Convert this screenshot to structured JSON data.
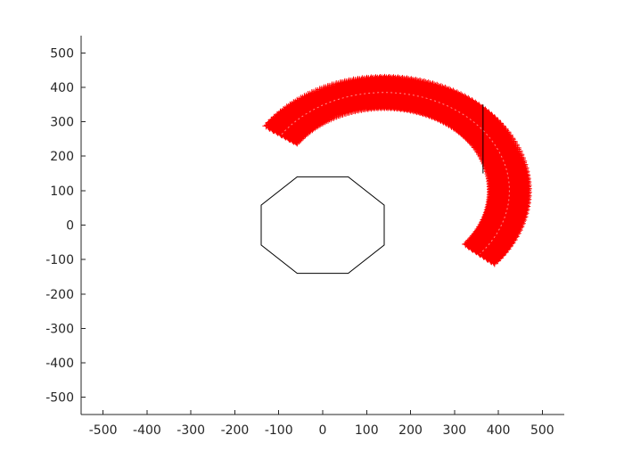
{
  "chart_data": {
    "type": "scatter",
    "title": "",
    "xlabel": "",
    "ylabel": "",
    "xlim": [
      -550,
      550
    ],
    "ylim": [
      -550,
      550
    ],
    "grid": false,
    "legend": "none",
    "x_ticks": [
      -500,
      -400,
      -300,
      -200,
      -100,
      0,
      100,
      200,
      300,
      400,
      500
    ],
    "y_ticks": [
      500,
      400,
      300,
      200,
      100,
      0,
      -100,
      -200,
      -300,
      -400,
      -500
    ],
    "x_tick_labels": [
      "-500",
      "-400",
      "-300",
      "-200",
      "-100",
      "0",
      "100",
      "200",
      "300",
      "400",
      "500"
    ],
    "y_tick_labels": [
      "500",
      "400",
      "300",
      "200",
      "100",
      "0",
      "-100",
      "-200",
      "-300",
      "-400",
      "-500"
    ],
    "octagon": {
      "color": "#000000",
      "vertices": [
        [
          -58,
          140
        ],
        [
          58,
          140
        ],
        [
          140,
          58
        ],
        [
          140,
          -58
        ],
        [
          58,
          -140
        ],
        [
          -58,
          -140
        ],
        [
          -140,
          -58
        ],
        [
          -140,
          58
        ]
      ]
    },
    "arc_band": {
      "color": "#ff0000",
      "marker": "plus",
      "center": [
        140,
        100
      ],
      "inner_radius": 245,
      "outer_radius": 325,
      "start_angle_deg": 145,
      "end_angle_deg": -40,
      "end_cap_inner": [
        283,
        -90
      ],
      "end_cap_outer": [
        365,
        -165
      ],
      "start_cap_inner": [
        -90,
        280
      ],
      "start_cap_outer": [
        -165,
        352
      ]
    },
    "center_trace": {
      "color": "#ffffff",
      "radius": 285
    },
    "vertical_segment": {
      "color": "#000000",
      "x": 365,
      "y_range": [
        150,
        350
      ]
    }
  }
}
